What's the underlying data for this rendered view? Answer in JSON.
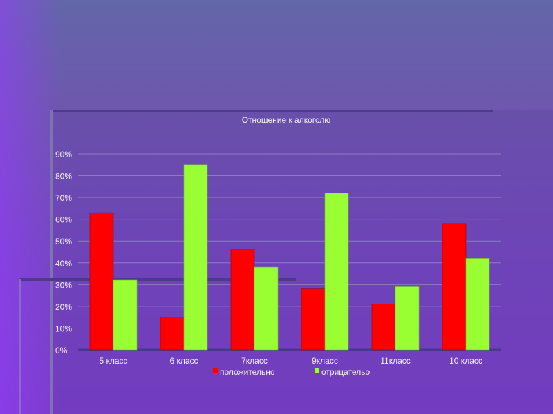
{
  "chart_data": {
    "type": "bar",
    "title": "Отношение к алкоголю",
    "categories": [
      "5 класс",
      "6 класс",
      "7класс",
      "9класс",
      "11класс",
      "10 класс"
    ],
    "series": [
      {
        "name": "положительно",
        "color": "#ff0000",
        "values": [
          63,
          15,
          46,
          28,
          21,
          58
        ]
      },
      {
        "name": "отрицательо",
        "color": "#99ff33",
        "values": [
          32,
          85,
          38,
          72,
          29,
          42
        ]
      }
    ],
    "ylim": [
      0,
      90
    ],
    "yticks": [
      "0%",
      "10%",
      "20%",
      "30%",
      "40%",
      "50%",
      "60%",
      "70%",
      "80%",
      "90%"
    ],
    "grid": true,
    "legend": "bottom"
  }
}
